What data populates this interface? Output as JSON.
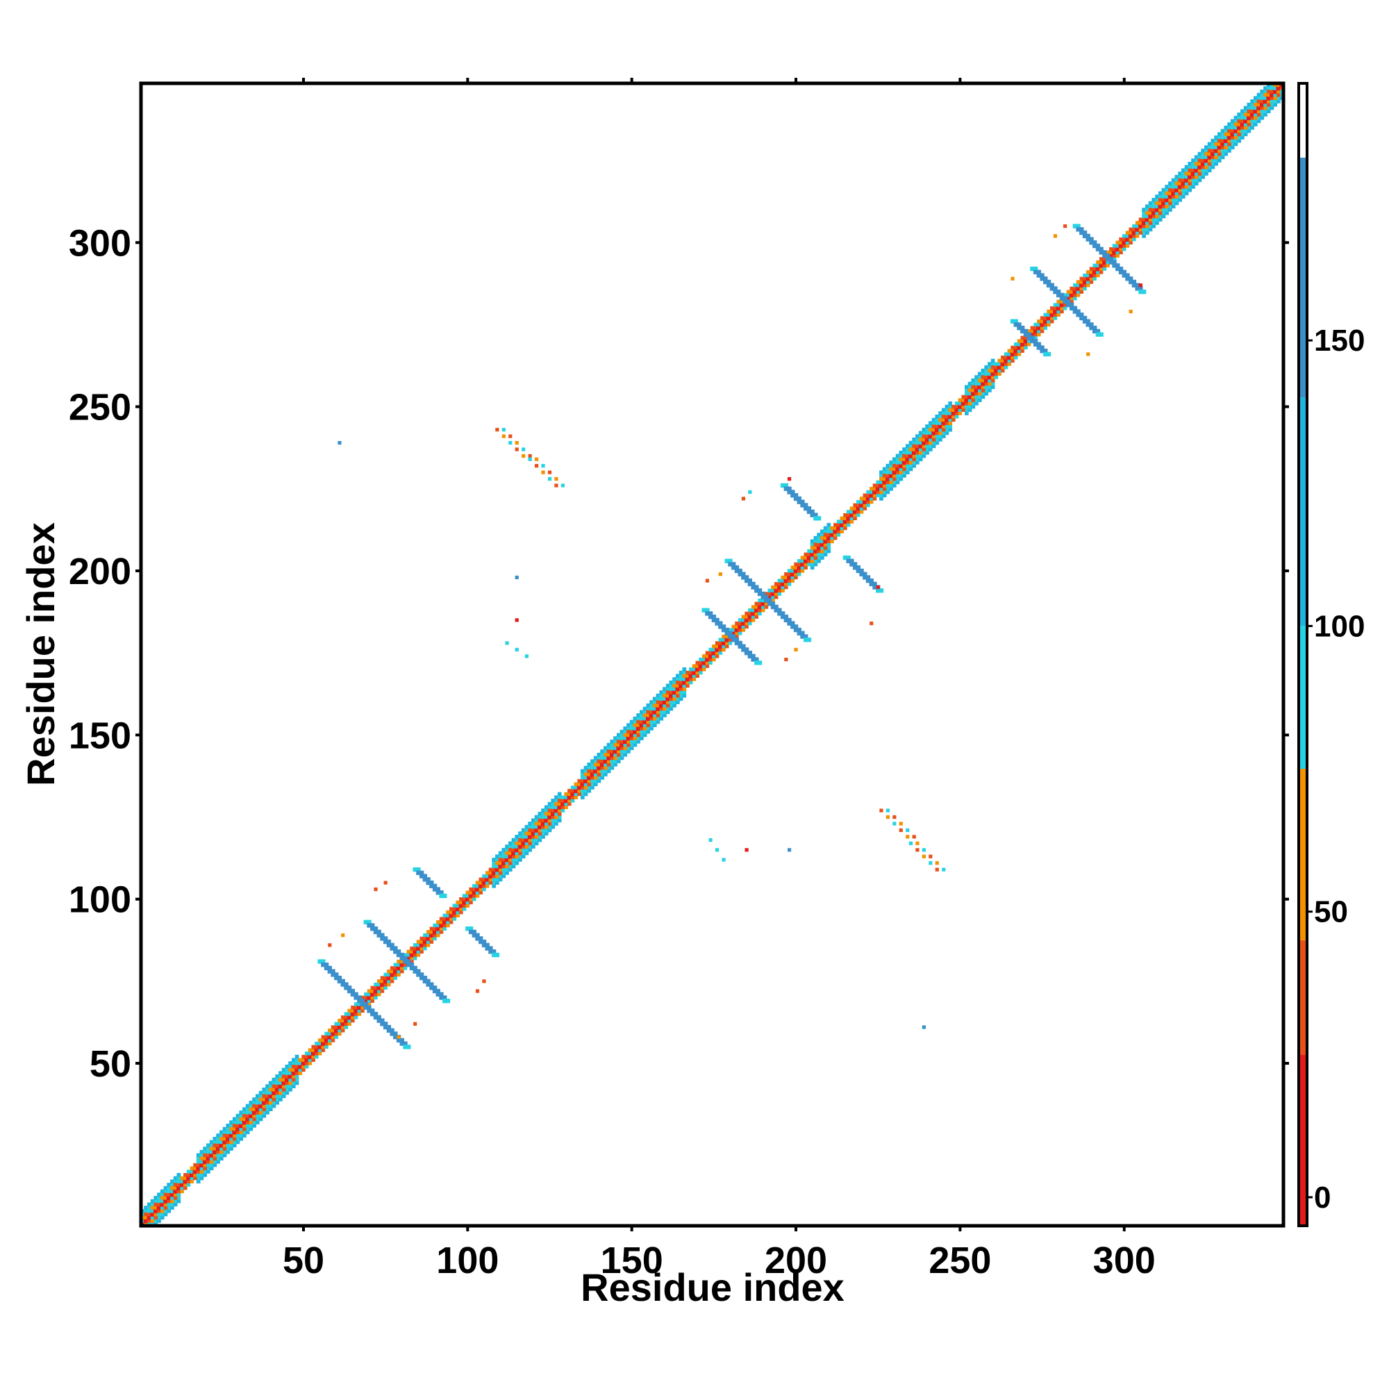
{
  "chart_data": {
    "type": "heatmap",
    "title": "",
    "xlabel": "Residue index",
    "ylabel": "Residue index",
    "xlim": [
      1,
      348
    ],
    "ylim": [
      1,
      348
    ],
    "x_ticks": [
      50,
      100,
      150,
      200,
      250,
      300
    ],
    "y_ticks": [
      50,
      100,
      150,
      200,
      250,
      300
    ],
    "colorbar": {
      "ticks": [
        0,
        50,
        100,
        150
      ],
      "range": [
        -5,
        195
      ],
      "bands": [
        {
          "from": -5,
          "to": 25,
          "color": "#e41a1c"
        },
        {
          "from": 25,
          "to": 45,
          "color": "#e8501a"
        },
        {
          "from": 45,
          "to": 75,
          "color": "#f39200"
        },
        {
          "from": 75,
          "to": 100,
          "color": "#27d3e3"
        },
        {
          "from": 100,
          "to": 140,
          "color": "#20b4dd"
        },
        {
          "from": 140,
          "to": 182,
          "color": "#3b90cc"
        },
        {
          "from": 182,
          "to": 195,
          "color": "#ffffff"
        }
      ]
    },
    "diagonal": {
      "from": 1,
      "to": 348,
      "core_color": "#e41a1c",
      "outer_colors": [
        "#f39200",
        "#e8501a",
        "#27d3e3"
      ]
    },
    "helical_segments": [
      {
        "from": 1,
        "to": 12
      },
      {
        "from": 18,
        "to": 48
      },
      {
        "from": 108,
        "to": 128
      },
      {
        "from": 135,
        "to": 166
      },
      {
        "from": 205,
        "to": 210
      },
      {
        "from": 226,
        "to": 247
      },
      {
        "from": 252,
        "to": 260
      },
      {
        "from": 306,
        "to": 348
      }
    ],
    "antiparallel_strands": [
      {
        "center": [
          68,
          68
        ],
        "half_length": 13,
        "color": "#3b90cc"
      },
      {
        "center": [
          81,
          81
        ],
        "half_length": 12,
        "color": "#3b90cc"
      },
      {
        "center": [
          88,
          105
        ],
        "half_length": 4,
        "color": "#3b90cc"
      },
      {
        "center": [
          104,
          87
        ],
        "half_length": 4,
        "color": "#3b90cc"
      },
      {
        "center": [
          180,
          180
        ],
        "half_length": 8,
        "color": "#3b90cc"
      },
      {
        "center": [
          191,
          191
        ],
        "half_length": 12,
        "color": "#3b90cc"
      },
      {
        "center": [
          201,
          221
        ],
        "half_length": 5,
        "color": "#3b90cc"
      },
      {
        "center": [
          220,
          199
        ],
        "half_length": 5,
        "color": "#3b90cc"
      },
      {
        "center": [
          271,
          271
        ],
        "half_length": 5,
        "color": "#3b90cc"
      },
      {
        "center": [
          282,
          282
        ],
        "half_length": 10,
        "color": "#3b90cc"
      },
      {
        "center": [
          295,
          295
        ],
        "half_length": 10,
        "color": "#3b90cc"
      }
    ],
    "parallel_features": [
      {
        "from": [
          109,
          243
        ],
        "to": [
          127,
          226
        ],
        "colors": [
          "#e8501a",
          "#27d3e3",
          "#f39200"
        ]
      },
      {
        "from": [
          226,
          127
        ],
        "to": [
          243,
          109
        ],
        "colors": [
          "#e8501a",
          "#27d3e3",
          "#f39200"
        ]
      }
    ],
    "isolated_contacts": [
      {
        "x": 61,
        "y": 239,
        "color": "#3b90cc"
      },
      {
        "x": 115,
        "y": 198,
        "color": "#3b90cc"
      },
      {
        "x": 115,
        "y": 185,
        "color": "#e41a1c"
      },
      {
        "x": 112,
        "y": 178,
        "color": "#27d3e3"
      },
      {
        "x": 115,
        "y": 176,
        "color": "#27d3e3"
      },
      {
        "x": 118,
        "y": 174,
        "color": "#27d3e3"
      },
      {
        "x": 174,
        "y": 118,
        "color": "#27d3e3"
      },
      {
        "x": 176,
        "y": 115,
        "color": "#27d3e3"
      },
      {
        "x": 178,
        "y": 112,
        "color": "#27d3e3"
      },
      {
        "x": 185,
        "y": 115,
        "color": "#e41a1c"
      },
      {
        "x": 198,
        "y": 115,
        "color": "#3b90cc"
      },
      {
        "x": 239,
        "y": 61,
        "color": "#3b90cc"
      },
      {
        "x": 72,
        "y": 103,
        "color": "#e8501a"
      },
      {
        "x": 75,
        "y": 105,
        "color": "#e8501a"
      },
      {
        "x": 103,
        "y": 72,
        "color": "#e8501a"
      },
      {
        "x": 105,
        "y": 75,
        "color": "#e8501a"
      },
      {
        "x": 58,
        "y": 86,
        "color": "#e8501a"
      },
      {
        "x": 62,
        "y": 89,
        "color": "#f39200"
      },
      {
        "x": 79,
        "y": 58,
        "color": "#f39200"
      },
      {
        "x": 84,
        "y": 62,
        "color": "#e8501a"
      },
      {
        "x": 173,
        "y": 197,
        "color": "#e8501a"
      },
      {
        "x": 177,
        "y": 199,
        "color": "#f39200"
      },
      {
        "x": 184,
        "y": 222,
        "color": "#e8501a"
      },
      {
        "x": 186,
        "y": 224,
        "color": "#27d3e3"
      },
      {
        "x": 197,
        "y": 173,
        "color": "#e8501a"
      },
      {
        "x": 200,
        "y": 176,
        "color": "#f39200"
      },
      {
        "x": 223,
        "y": 184,
        "color": "#e8501a"
      },
      {
        "x": 225,
        "y": 195,
        "color": "#e41a1c"
      },
      {
        "x": 198,
        "y": 228,
        "color": "#e41a1c"
      },
      {
        "x": 266,
        "y": 289,
        "color": "#f39200"
      },
      {
        "x": 279,
        "y": 302,
        "color": "#f39200"
      },
      {
        "x": 282,
        "y": 305,
        "color": "#e8501a"
      },
      {
        "x": 289,
        "y": 266,
        "color": "#f39200"
      },
      {
        "x": 302,
        "y": 279,
        "color": "#f39200"
      },
      {
        "x": 305,
        "y": 287,
        "color": "#e41a1c"
      }
    ]
  }
}
